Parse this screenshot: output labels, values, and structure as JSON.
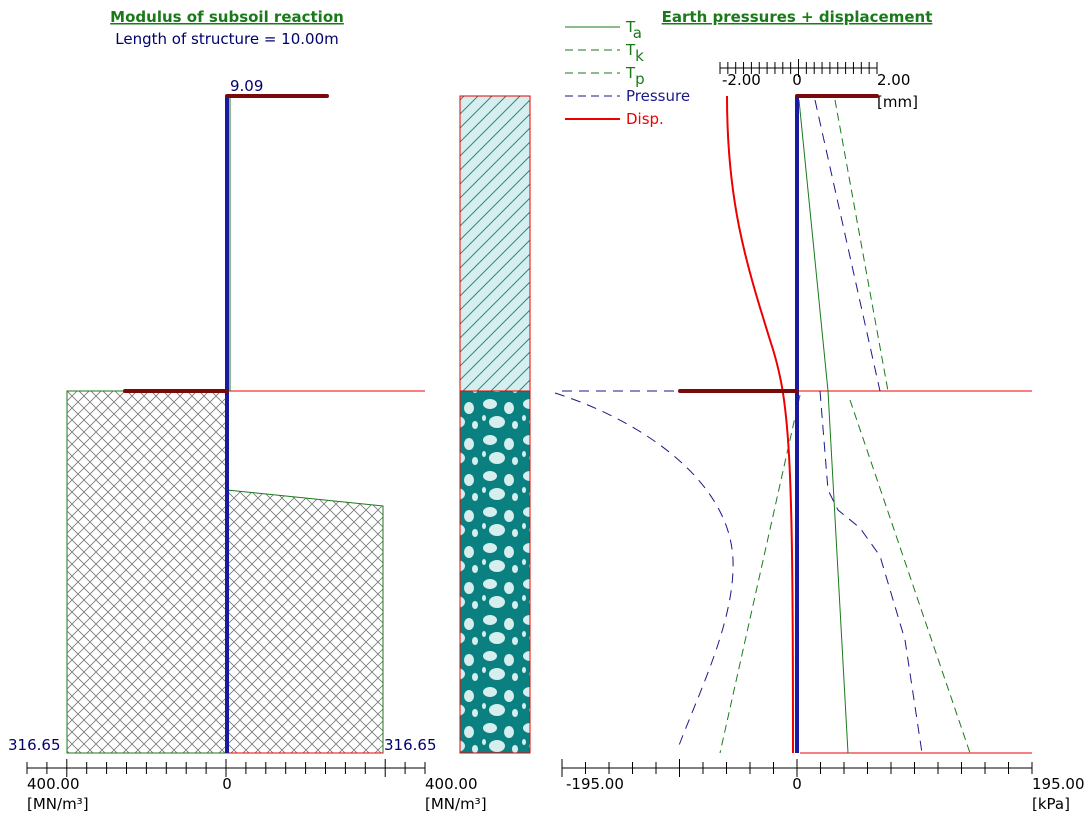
{
  "left": {
    "title": "Modulus of subsoil reaction",
    "subtitle": "Length of structure = 10.00m",
    "top_value": "9.09",
    "bottom_left_value": "316.65",
    "bottom_right_value": "316.65",
    "axis": {
      "left": "400.00",
      "zero": "0",
      "right": "400.00",
      "unit_left": "[MN/m³]",
      "unit_right": "[MN/m³]"
    }
  },
  "right": {
    "title": "Earth pressures + displacement",
    "legend": [
      {
        "label": "T",
        "sub": "a"
      },
      {
        "label": "T",
        "sub": "k"
      },
      {
        "label": "T",
        "sub": "p"
      },
      {
        "label": "Pressure"
      },
      {
        "label": "Disp."
      }
    ],
    "disp_axis": {
      "min": "-2.00",
      "zero": "0",
      "max": "2.00",
      "unit": "[mm]"
    },
    "pressure_axis": {
      "min": "-195.00",
      "zero": "0",
      "max": "195.00",
      "unit": "[kPa]"
    }
  }
}
